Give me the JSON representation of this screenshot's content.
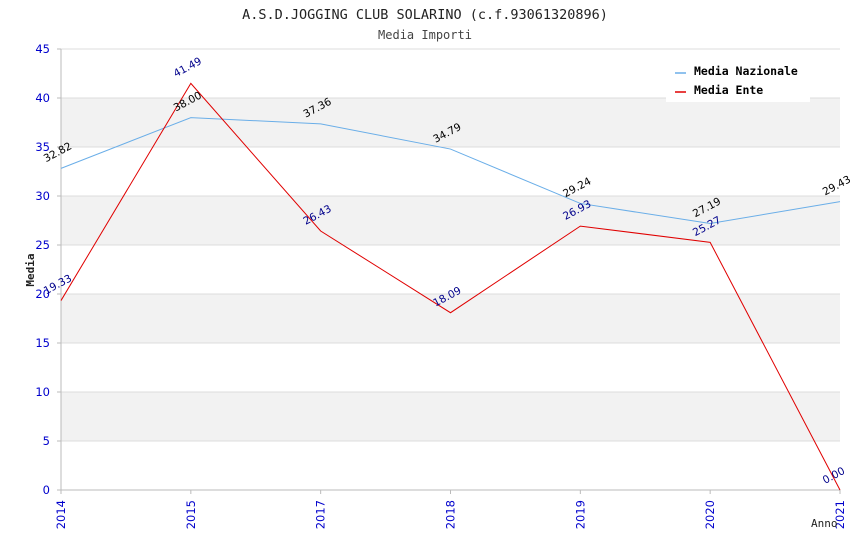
{
  "chart_data": {
    "type": "line",
    "title": "A.S.D.JOGGING CLUB SOLARINO (c.f.93061320896)",
    "subtitle": "Media Importi",
    "xlabel": "Anno",
    "ylabel": "Media",
    "categories": [
      "2014",
      "2015",
      "2017",
      "2018",
      "2019",
      "2020",
      "2021"
    ],
    "ylim": [
      0,
      45
    ],
    "yticks": [
      0,
      5,
      10,
      15,
      20,
      25,
      30,
      35,
      40,
      45
    ],
    "grid": "horizontal alternating bands",
    "legend_position": "top-right",
    "series": [
      {
        "name": "Media Nazionale",
        "color": "#6aaee8",
        "label_color": "#000000",
        "values": [
          32.82,
          38.0,
          37.36,
          34.79,
          29.24,
          27.19,
          29.43
        ],
        "labels": [
          "32.82",
          "38.00",
          "37.36",
          "34.79",
          "29.24",
          "27.19",
          "29.43"
        ]
      },
      {
        "name": "Media Ente",
        "color": "#e00000",
        "label_color": "#00008b",
        "values": [
          19.33,
          41.49,
          26.43,
          18.09,
          26.93,
          25.27,
          0.0
        ],
        "labels": [
          "19.33",
          "41.49",
          "26.43",
          "18.09",
          "26.93",
          "25.27",
          "0.00"
        ]
      }
    ]
  },
  "colors": {
    "band_fill": "#f2f2f2",
    "grid_line": "#dcdcdc",
    "axis_line": "#bbbbbb",
    "tick_label": "#0000cc",
    "title_text": "#222222",
    "subtitle_text": "#444444"
  }
}
